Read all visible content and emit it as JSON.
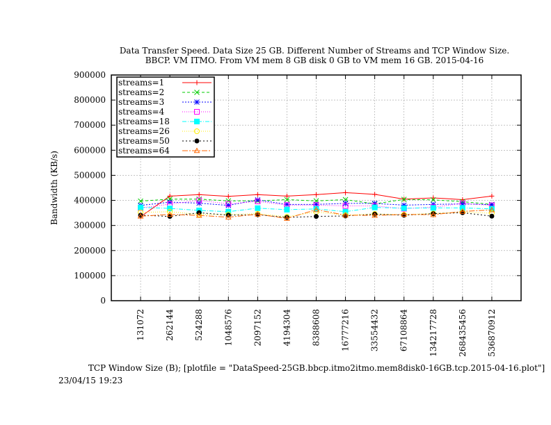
{
  "chart_data": {
    "type": "line",
    "title": [
      "Data Transfer Speed. Data Size 25 GB. Different Number of Streams and TCP Window Size.",
      "BBCP. VM ITMO. From VM mem 8 GB disk 0 GB to VM mem 16 GB.  2015-04-16"
    ],
    "xlabel": "TCP Window Size (B); [plotfile = \"DataSpeed-25GB.bbcp.itmo2itmo.mem8disk0-16GB.tcp.2015-04-16.plot\"]",
    "ylabel": "Bandwidth (KB/s)",
    "timestamp": "23/04/15 19:23",
    "categories": [
      "131072",
      "262144",
      "524288",
      "1048576",
      "2097152",
      "4194304",
      "8388608",
      "16777216",
      "33554432",
      "67108864",
      "134217728",
      "268435456",
      "536870912"
    ],
    "ylim": [
      0,
      900000
    ],
    "yticks": [
      0,
      100000,
      200000,
      300000,
      400000,
      500000,
      600000,
      700000,
      800000,
      900000
    ],
    "grid": true,
    "legend_position": "top-left",
    "series": [
      {
        "name": "streams=1",
        "color": "#ff0000",
        "dash": "",
        "marker": "plus",
        "values": [
          335000,
          417000,
          423000,
          416000,
          423000,
          417000,
          423000,
          431000,
          424000,
          405000,
          410000,
          403000,
          417000
        ]
      },
      {
        "name": "streams=2",
        "color": "#00cc00",
        "dash": "4,3",
        "marker": "x",
        "values": [
          397000,
          405000,
          405000,
          398000,
          398000,
          403000,
          398000,
          403000,
          386000,
          404000,
          402000,
          395000,
          384000
        ]
      },
      {
        "name": "streams=3",
        "color": "#0000ff",
        "dash": "2,2",
        "marker": "star",
        "values": [
          380000,
          393000,
          389000,
          380000,
          402000,
          384000,
          384000,
          388000,
          388000,
          381000,
          384000,
          386000,
          383000
        ]
      },
      {
        "name": "streams=4",
        "color": "#ff00ff",
        "dash": "1,2",
        "marker": "square",
        "values": [
          370000,
          385000,
          400000,
          386000,
          396000,
          381000,
          381000,
          378000,
          378000,
          367000,
          373000,
          388000,
          380000
        ]
      },
      {
        "name": "streams=18",
        "color": "#00ffff",
        "dash": "6,2,1,2",
        "marker": "filled-square",
        "values": [
          372000,
          368000,
          360000,
          355000,
          369000,
          363000,
          366000,
          355000,
          372000,
          369000,
          370000,
          370000,
          366000
        ]
      },
      {
        "name": "streams=26",
        "color": "#ffee00",
        "dash": "1,2",
        "marker": "circle",
        "values": [
          352000,
          355000,
          344000,
          344000,
          347000,
          335000,
          354000,
          341000,
          346000,
          343000,
          348000,
          353000,
          349000
        ]
      },
      {
        "name": "streams=50",
        "color": "#000000",
        "dash": "2,3",
        "marker": "filled-circle",
        "values": [
          341000,
          336000,
          351000,
          341000,
          343000,
          332000,
          336000,
          338000,
          345000,
          341000,
          347000,
          351000,
          337000
        ]
      },
      {
        "name": "streams=64",
        "color": "#ff6600",
        "dash": "8,2,2,2",
        "marker": "triangle",
        "values": [
          337000,
          344000,
          340000,
          333000,
          345000,
          328000,
          363000,
          341000,
          340000,
          344000,
          343000,
          356000,
          362000
        ]
      }
    ]
  }
}
